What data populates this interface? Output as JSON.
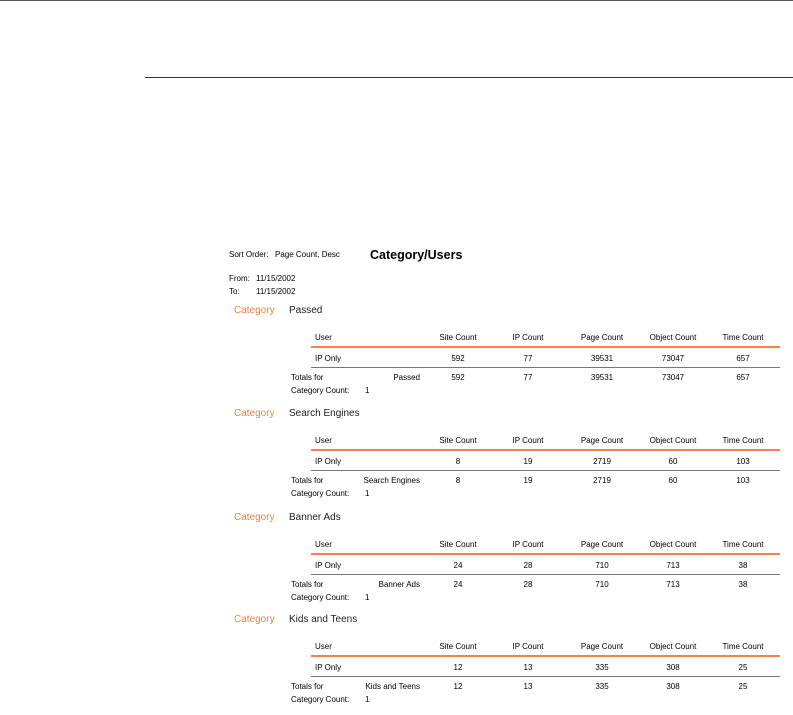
{
  "header": {
    "sort_label": "Sort Order:",
    "sort_value": "Page Count, Desc",
    "title": "Category/Users",
    "from_label": "From:",
    "from_value": "11/15/2002",
    "to_label": "To:",
    "to_value": "11/15/2002"
  },
  "accent_color": "#f58143",
  "columns": [
    "User",
    "Site Count",
    "IP Count",
    "Page Count",
    "Object Count",
    "Time Count"
  ],
  "category_label": "Category",
  "totals_label": "Totals for",
  "count_label": "Category Count:",
  "sections": [
    {
      "name": "Passed",
      "rows": [
        [
          "IP Only",
          "592",
          "77",
          "39531",
          "73047",
          "657"
        ]
      ],
      "totals": [
        "592",
        "77",
        "39531",
        "73047",
        "657"
      ],
      "count": "1"
    },
    {
      "name": "Search Engines",
      "rows": [
        [
          "IP Only",
          "8",
          "19",
          "2719",
          "60",
          "103"
        ]
      ],
      "totals": [
        "8",
        "19",
        "2719",
        "60",
        "103"
      ],
      "count": "1"
    },
    {
      "name": "Banner Ads",
      "rows": [
        [
          "IP Only",
          "24",
          "28",
          "710",
          "713",
          "38"
        ]
      ],
      "totals": [
        "24",
        "28",
        "710",
        "713",
        "38"
      ],
      "count": "1"
    },
    {
      "name": "Kids and Teens",
      "rows": [
        [
          "IP Only",
          "12",
          "13",
          "335",
          "308",
          "25"
        ]
      ],
      "totals": [
        "12",
        "13",
        "335",
        "308",
        "25"
      ],
      "count": "1"
    }
  ]
}
